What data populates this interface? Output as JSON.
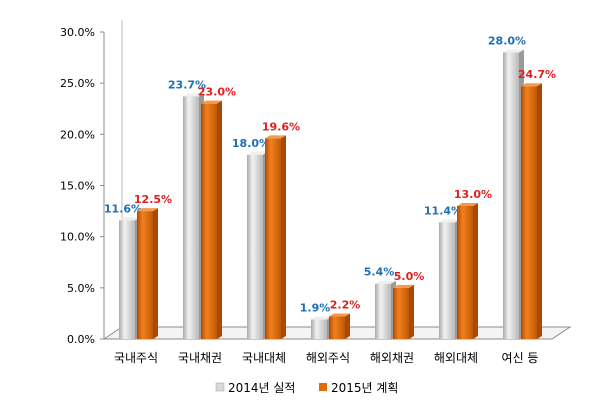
{
  "chart_data": {
    "type": "bar",
    "categories": [
      "국내주식",
      "국내채권",
      "국내대체",
      "해외주식",
      "해외채권",
      "해외대체",
      "여신 등"
    ],
    "series": [
      {
        "name": "2014년 실적",
        "values": [
          11.6,
          23.7,
          18.0,
          1.9,
          5.4,
          11.4,
          28.0
        ],
        "labels": [
          "11.6%",
          "23.7%",
          "18.0%",
          "1.9%",
          "5.4%",
          "11.4%",
          "28.0%"
        ],
        "color": "#d9d9d9",
        "label_color": "#1f6fb4"
      },
      {
        "name": "2015년 계획",
        "values": [
          12.5,
          23.0,
          19.6,
          2.2,
          5.0,
          13.0,
          24.7
        ],
        "labels": [
          "12.5%",
          "23.0%",
          "19.6%",
          "2.2%",
          "5.0%",
          "13.0%",
          "24.7%"
        ],
        "color": "#e36c09",
        "label_color": "#e02020"
      }
    ],
    "ylim": [
      0,
      30
    ],
    "yticks": [
      "0.0%",
      "5.0%",
      "10.0%",
      "15.0%",
      "20.0%",
      "25.0%",
      "30.0%"
    ],
    "legend_position": "bottom",
    "grid": false
  }
}
